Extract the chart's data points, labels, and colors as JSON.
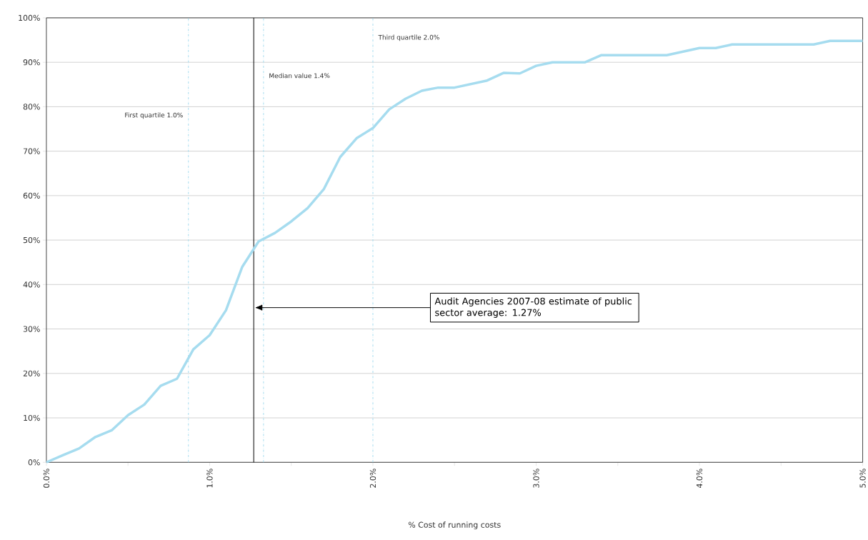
{
  "chart_data": {
    "type": "line",
    "xlabel": "% Cost of running costs",
    "x": [
      0.0,
      0.1,
      0.2,
      0.3,
      0.4,
      0.5,
      0.6,
      0.7,
      0.8,
      0.9,
      1.0,
      1.1,
      1.2,
      1.3,
      1.4,
      1.5,
      1.6,
      1.7,
      1.8,
      1.9,
      2.0,
      2.1,
      2.2,
      2.3,
      2.4,
      2.5,
      2.6,
      2.7,
      2.8,
      2.9,
      3.0,
      3.1,
      3.2,
      3.3,
      3.4,
      3.5,
      3.6,
      3.7,
      3.8,
      3.9,
      4.0,
      4.1,
      4.2,
      4.3,
      4.4,
      4.5,
      4.6,
      4.7,
      4.8,
      4.9,
      5.0
    ],
    "series": [
      {
        "color": "#a6dcef",
        "values": [
          0,
          1.6,
          3.1,
          5.7,
          7.2,
          10.6,
          13.0,
          17.2,
          18.8,
          25.4,
          28.6,
          34.2,
          44.0,
          49.7,
          51.6,
          54.2,
          57.2,
          61.5,
          68.7,
          72.9,
          75.2,
          79.4,
          81.8,
          83.6,
          84.3,
          84.3,
          85.1,
          85.9,
          87.6,
          87.5,
          89.2,
          90.0,
          90.0,
          90.0,
          91.6,
          91.6,
          91.6,
          91.6,
          91.6,
          92.4,
          93.2,
          93.2,
          94.0,
          94.0,
          94.0,
          94.0,
          94.0,
          94.0,
          94.8,
          94.8,
          94.8
        ]
      }
    ],
    "xlim": [
      0,
      5
    ],
    "ylim": [
      0,
      100
    ],
    "xticks": [
      {
        "value": 0,
        "label": "0.0%"
      },
      {
        "value": 0.5,
        "label": null
      },
      {
        "value": 1,
        "label": "1.0%"
      },
      {
        "value": 1.5,
        "label": null
      },
      {
        "value": 2,
        "label": "2.0%"
      },
      {
        "value": 2.5,
        "label": null
      },
      {
        "value": 3,
        "label": "3.0%"
      },
      {
        "value": 3.5,
        "label": null
      },
      {
        "value": 4,
        "label": "4.0%"
      },
      {
        "value": 4.5,
        "label": null
      },
      {
        "value": 5,
        "label": "5.0%"
      }
    ],
    "yticks": [
      {
        "value": 0,
        "label": "0%"
      },
      {
        "value": 10,
        "label": "10%"
      },
      {
        "value": 20,
        "label": "20%"
      },
      {
        "value": 30,
        "label": "30%"
      },
      {
        "value": 40,
        "label": "40%"
      },
      {
        "value": 50,
        "label": "50%"
      },
      {
        "value": 60,
        "label": "60%"
      },
      {
        "value": 70,
        "label": "70%"
      },
      {
        "value": 80,
        "label": "80%"
      },
      {
        "value": 90,
        "label": "90%"
      },
      {
        "value": 100,
        "label": "100%"
      }
    ],
    "grid": "y",
    "marker": "none",
    "line_style": "solid",
    "ref_lines": [
      {
        "axis": "x",
        "value": 0.87,
        "label": "First quartile 1.0%",
        "color": "#a6dcef",
        "line_style": "dashed"
      },
      {
        "axis": "x",
        "value": 1.33,
        "label": "Median value 1.4%",
        "color": "#a6dcef",
        "line_style": "dashed"
      },
      {
        "axis": "x",
        "value": 2.0,
        "label": "Third quartile 2.0%",
        "color": "#a6dcef",
        "line_style": "dashed"
      },
      {
        "axis": "x",
        "value": 1.27,
        "label": "Audit Agencies 2007-08 estimate of public sector average: 1.27%",
        "color": "#000000",
        "line_style": "solid"
      }
    ]
  }
}
